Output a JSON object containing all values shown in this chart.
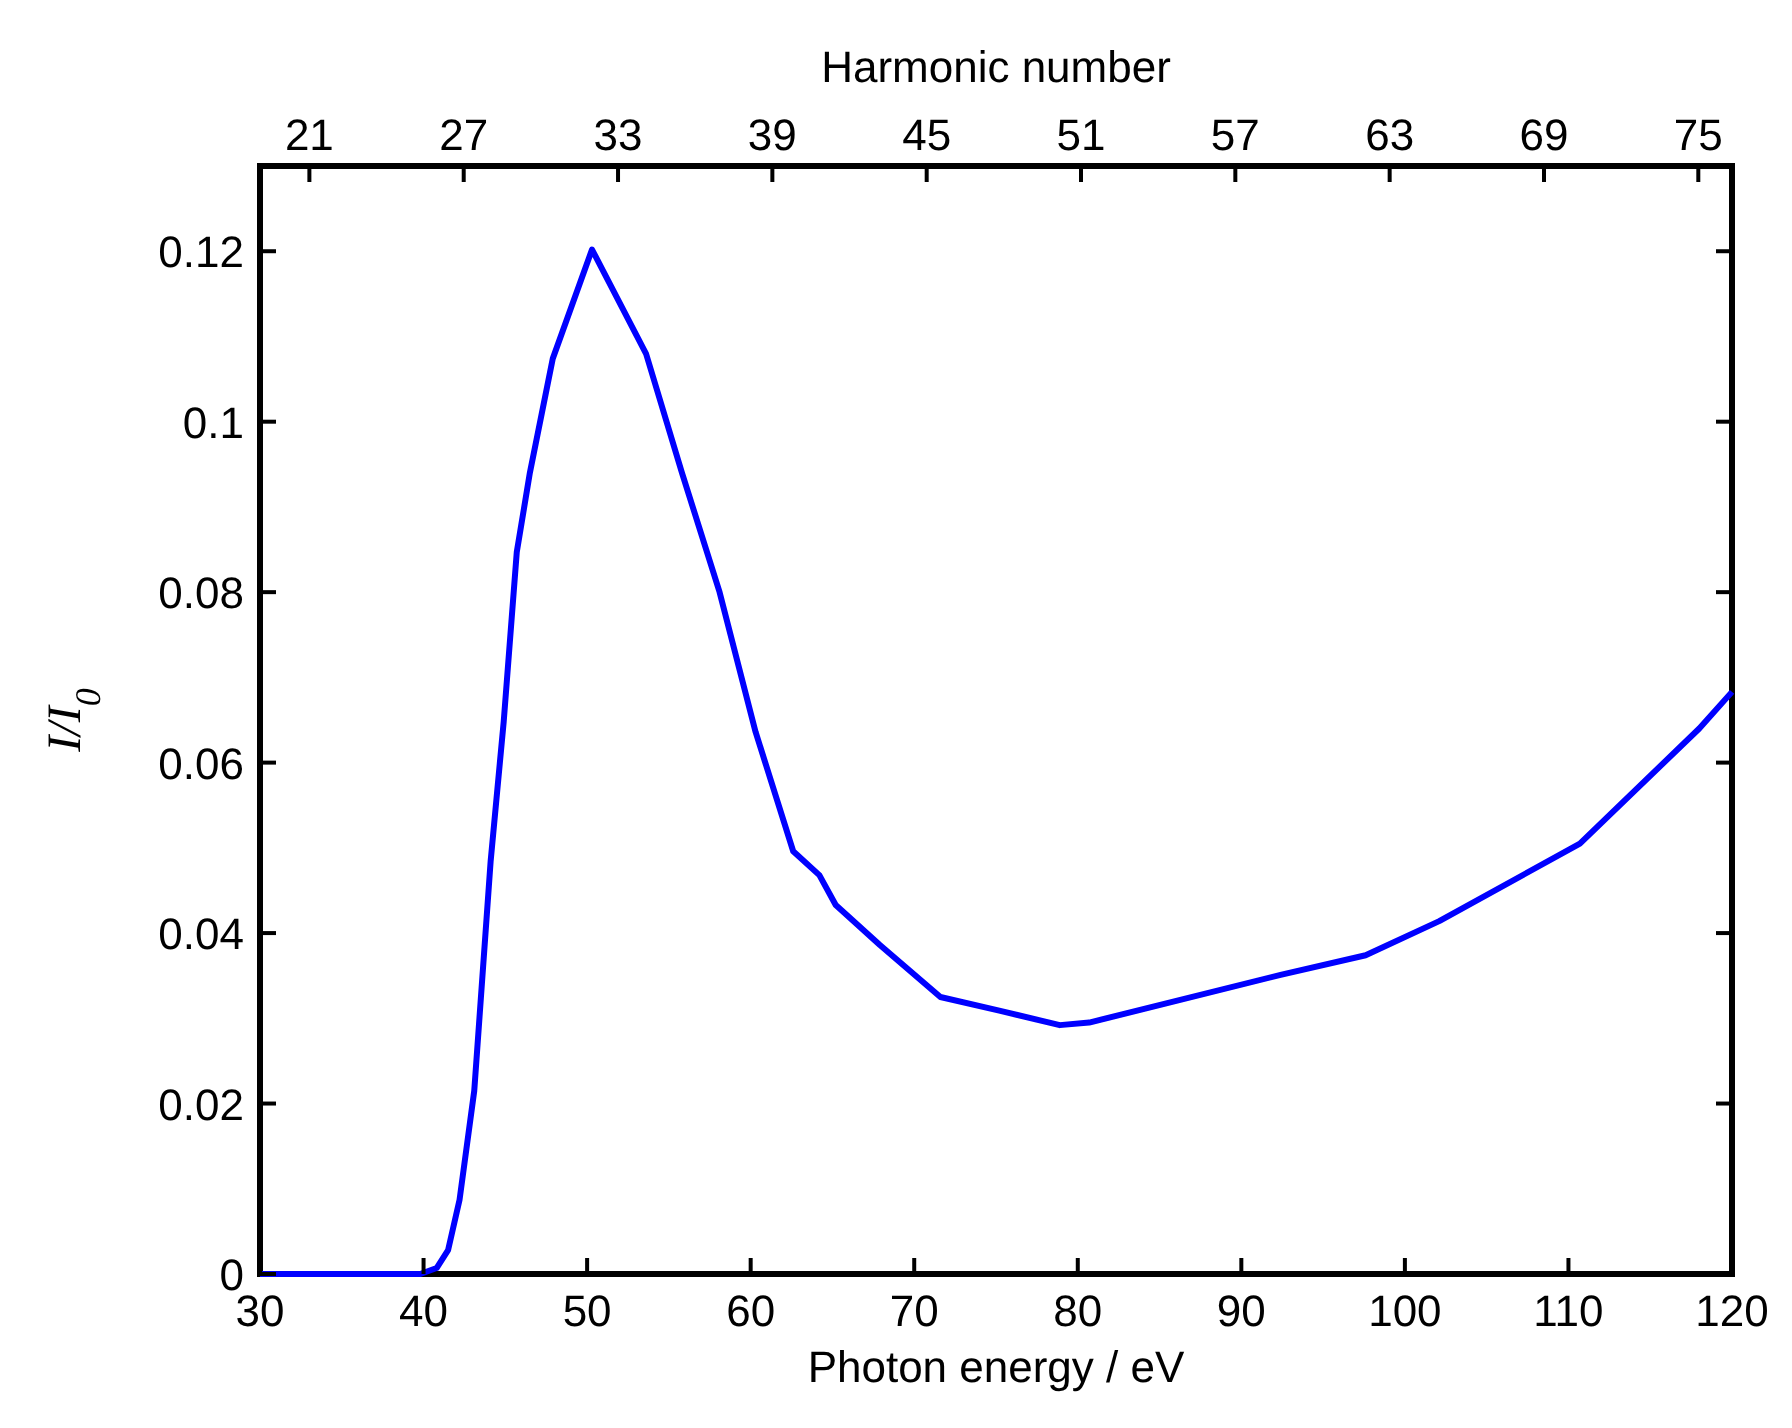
{
  "chart_data": {
    "type": "line",
    "xlabel": "Photon energy / eV",
    "ylabel": "I/I$_{0}$",
    "x2label": "Harmonic number",
    "xlim": [
      30,
      120
    ],
    "xticks": [
      30,
      40,
      50,
      60,
      70,
      80,
      90,
      100,
      110,
      120
    ],
    "ylim": [
      0,
      0.13
    ],
    "yticks": [
      0,
      0.02,
      0.04,
      0.06,
      0.08,
      0.1,
      0.12
    ],
    "x2lim": [
      19.08,
      76.31
    ],
    "x2ticks": [
      21,
      27,
      33,
      39,
      45,
      51,
      57,
      63,
      69,
      75
    ],
    "grid": false,
    "marker": "none",
    "line_style": "solid",
    "series": [
      {
        "color": "#0000ff",
        "x": [
          30,
          39.8,
          40.8,
          41.5,
          42.2,
          43.1,
          44.1,
          44.9,
          45.7,
          46.5,
          47.9,
          50.3,
          53.6,
          55.8,
          58.1,
          60.3,
          62.6,
          64.2,
          65.2,
          67.9,
          71.6,
          75.2,
          78.9,
          80.7,
          92.4,
          97.6,
          102.1,
          110.7,
          118,
          120
        ],
        "values": [
          0,
          0,
          0.0007,
          0.0028,
          0.0087,
          0.0215,
          0.0484,
          0.0648,
          0.0847,
          0.094,
          0.1074,
          0.1202,
          0.108,
          0.094,
          0.08,
          0.0636,
          0.0496,
          0.0468,
          0.0433,
          0.0386,
          0.0325,
          0.0309,
          0.0292,
          0.0295,
          0.0351,
          0.0374,
          0.0414,
          0.0505,
          0.064,
          0.0683
        ]
      }
    ]
  }
}
